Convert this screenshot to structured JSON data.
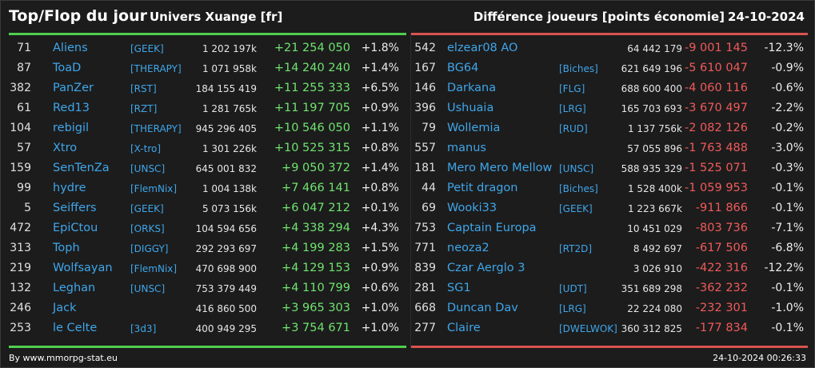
{
  "header": {
    "title": "Top/Flop du jour",
    "universe": "Univers Xuange [fr]",
    "metric": "Différence joueurs [points économie]",
    "date": "24-10-2024"
  },
  "top": [
    {
      "rank": "71",
      "name": "Aliens",
      "tag": "[GEEK]",
      "score": "1 202 197k",
      "diff": "+21 254 050",
      "pct": "+1.8%"
    },
    {
      "rank": "87",
      "name": "ToaD",
      "tag": "[THERAPY]",
      "score": "1 071 958k",
      "diff": "+14 240 240",
      "pct": "+1.4%"
    },
    {
      "rank": "382",
      "name": "PanZer",
      "tag": "[RST]",
      "score": "184 155 419",
      "diff": "+11 255 333",
      "pct": "+6.5%"
    },
    {
      "rank": "61",
      "name": "Red13",
      "tag": "[RZT]",
      "score": "1 281 765k",
      "diff": "+11 197 705",
      "pct": "+0.9%"
    },
    {
      "rank": "104",
      "name": "rebigil",
      "tag": "[THERAPY]",
      "score": "945 296 405",
      "diff": "+10 546 050",
      "pct": "+1.1%"
    },
    {
      "rank": "57",
      "name": "Xtro",
      "tag": "[X-tro]",
      "score": "1 301 226k",
      "diff": "+10 525 315",
      "pct": "+0.8%"
    },
    {
      "rank": "159",
      "name": "SenTenZa",
      "tag": "[UNSC]",
      "score": "645 001 832",
      "diff": "+9 050 372",
      "pct": "+1.4%"
    },
    {
      "rank": "99",
      "name": "hydre",
      "tag": "[FlemNix]",
      "score": "1 004 138k",
      "diff": "+7 466 141",
      "pct": "+0.8%"
    },
    {
      "rank": "5",
      "name": "Seiffers",
      "tag": "[GEEK]",
      "score": "5 073 156k",
      "diff": "+6 047 212",
      "pct": "+0.1%"
    },
    {
      "rank": "472",
      "name": "EpiCtou",
      "tag": "[ORKS]",
      "score": "104 594 656",
      "diff": "+4 338 294",
      "pct": "+4.3%"
    },
    {
      "rank": "313",
      "name": "Toph",
      "tag": "[DIGGY]",
      "score": "292 293 697",
      "diff": "+4 199 283",
      "pct": "+1.5%"
    },
    {
      "rank": "219",
      "name": "Wolfsayan",
      "tag": "[FlemNix]",
      "score": "470 698 900",
      "diff": "+4 129 153",
      "pct": "+0.9%"
    },
    {
      "rank": "132",
      "name": "Leghan",
      "tag": "[UNSC]",
      "score": "753 379 449",
      "diff": "+4 110 799",
      "pct": "+0.6%"
    },
    {
      "rank": "246",
      "name": "Jack",
      "tag": "",
      "score": "416 860 500",
      "diff": "+3 965 303",
      "pct": "+1.0%"
    },
    {
      "rank": "253",
      "name": "le Celte",
      "tag": "[3d3]",
      "score": "400 949 295",
      "diff": "+3 754 671",
      "pct": "+1.0%"
    }
  ],
  "flop": [
    {
      "rank": "542",
      "name": "elzear08 AO",
      "tag": "",
      "score": "64 442 179",
      "diff": "-9 001 145",
      "pct": "-12.3%"
    },
    {
      "rank": "167",
      "name": "BG64",
      "tag": "[Biches]",
      "score": "621 649 196",
      "diff": "-5 610 047",
      "pct": "-0.9%"
    },
    {
      "rank": "146",
      "name": "Darkana",
      "tag": "[FLG]",
      "score": "688 600 400",
      "diff": "-4 060 116",
      "pct": "-0.6%"
    },
    {
      "rank": "396",
      "name": "Ushuaia",
      "tag": "[LRG]",
      "score": "165 703 693",
      "diff": "-3 670 497",
      "pct": "-2.2%"
    },
    {
      "rank": "79",
      "name": "Wollemia",
      "tag": "[RUD]",
      "score": "1 137 756k",
      "diff": "-2 082 126",
      "pct": "-0.2%"
    },
    {
      "rank": "557",
      "name": "manus",
      "tag": "",
      "score": "57 055 896",
      "diff": "-1 763 488",
      "pct": "-3.0%"
    },
    {
      "rank": "181",
      "name": "Mero Mero Mellow",
      "tag": "[UNSC]",
      "score": "588 935 329",
      "diff": "-1 525 071",
      "pct": "-0.3%"
    },
    {
      "rank": "44",
      "name": "Petit dragon",
      "tag": "[Biches]",
      "score": "1 528 400k",
      "diff": "-1 059 953",
      "pct": "-0.1%"
    },
    {
      "rank": "69",
      "name": "Wooki33",
      "tag": "[GEEK]",
      "score": "1 223 667k",
      "diff": "-911 866",
      "pct": "-0.1%"
    },
    {
      "rank": "753",
      "name": "Captain Europa",
      "tag": "",
      "score": "10 451 029",
      "diff": "-803 736",
      "pct": "-7.1%"
    },
    {
      "rank": "771",
      "name": "neoza2",
      "tag": "[RT2D]",
      "score": "8 492 697",
      "diff": "-617 506",
      "pct": "-6.8%"
    },
    {
      "rank": "839",
      "name": "Czar Aerglo 3",
      "tag": "",
      "score": "3 026 910",
      "diff": "-422 316",
      "pct": "-12.2%"
    },
    {
      "rank": "281",
      "name": "SG1",
      "tag": "[UDT]",
      "score": "351 689 298",
      "diff": "-362 232",
      "pct": "-0.1%"
    },
    {
      "rank": "668",
      "name": "Duncan Dav",
      "tag": "[LRG]",
      "score": "22 224 080",
      "diff": "-232 301",
      "pct": "-1.0%"
    },
    {
      "rank": "277",
      "name": "Claire",
      "tag": "[DWELWOK]",
      "score": "360 312 825",
      "diff": "-177 834",
      "pct": "-0.1%"
    }
  ],
  "footer": {
    "credit": "By www.mmorpg-stat.eu",
    "timestamp": "24-10-2024 00:26:33"
  },
  "colors": {
    "gain": "#6fe36f",
    "loss": "#f05a5a",
    "link": "#3fa6ea",
    "background": "#1c1c1c"
  }
}
